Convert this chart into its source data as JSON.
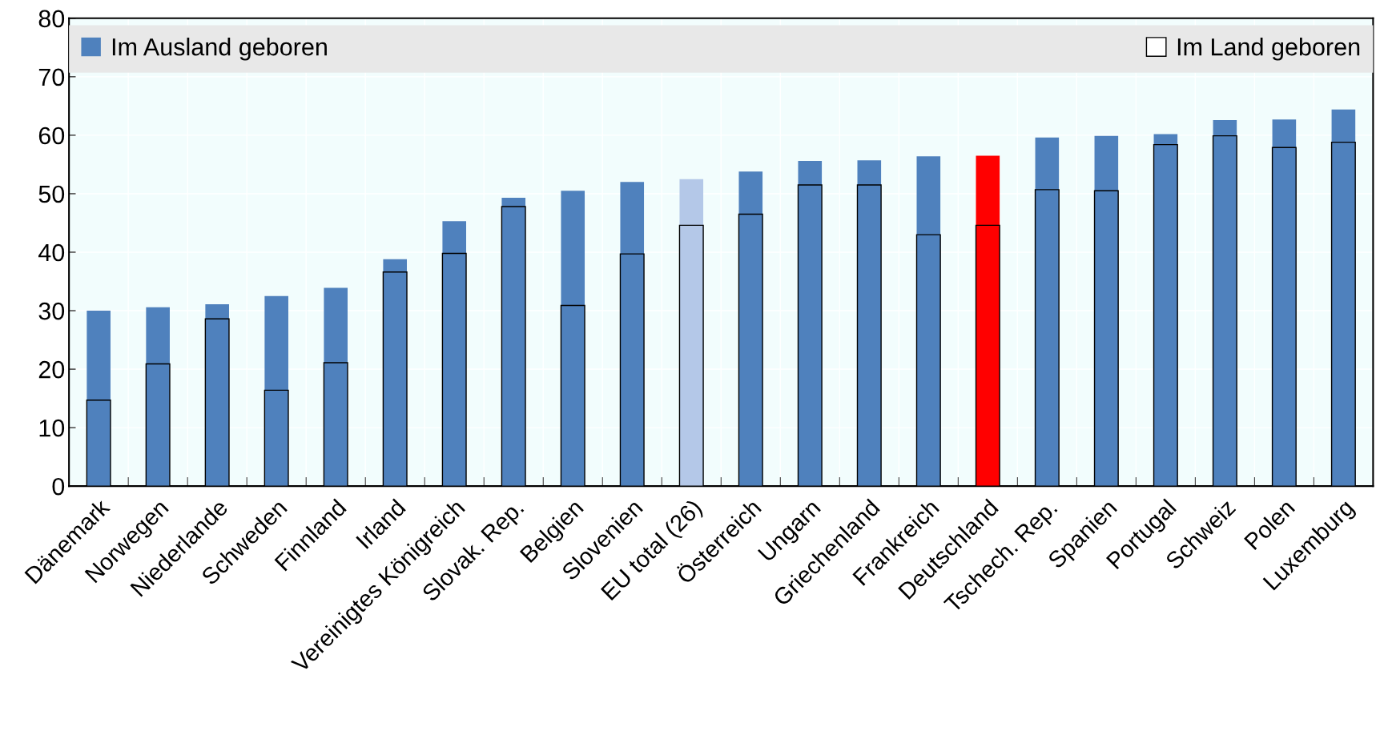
{
  "chart_data": {
    "type": "bar",
    "categories": [
      "Dänemark",
      "Norwegen",
      "Niederlande",
      "Schweden",
      "Finnland",
      "Irland",
      "Vereinigtes Königreich",
      "Slovak. Rep.",
      "Belgien",
      "Slovenien",
      "EU total (26)",
      "Österreich",
      "Ungarn",
      "Griechenland",
      "Frankreich",
      "Deutschland",
      "Tschech. Rep.",
      "Spanien",
      "Portugal",
      "Schweiz",
      "Polen",
      "Luxemburg"
    ],
    "series": [
      {
        "name": "Im Ausland geboren",
        "color": "#4f81bd",
        "colors": [
          "#4f81bd",
          "#4f81bd",
          "#4f81bd",
          "#4f81bd",
          "#4f81bd",
          "#4f81bd",
          "#4f81bd",
          "#4f81bd",
          "#4f81bd",
          "#4f81bd",
          "#b4c8e8",
          "#4f81bd",
          "#4f81bd",
          "#4f81bd",
          "#4f81bd",
          "#ff0000",
          "#4f81bd",
          "#4f81bd",
          "#4f81bd",
          "#4f81bd",
          "#4f81bd",
          "#4f81bd"
        ],
        "values": [
          30.0,
          30.6,
          31.1,
          32.5,
          33.9,
          38.8,
          45.3,
          49.3,
          50.5,
          52.0,
          52.5,
          53.8,
          55.6,
          55.7,
          56.4,
          56.5,
          59.6,
          59.9,
          60.2,
          62.6,
          62.7,
          64.4
        ]
      },
      {
        "name": "Im Land geboren",
        "color": "#000000",
        "values": [
          14.7,
          20.9,
          28.6,
          16.4,
          21.1,
          36.6,
          39.8,
          47.8,
          30.9,
          39.7,
          44.6,
          46.5,
          51.5,
          51.5,
          43.0,
          44.6,
          50.7,
          50.5,
          58.4,
          59.9,
          57.9,
          58.8
        ]
      }
    ],
    "ylim": [
      0,
      80
    ],
    "yticks": [
      0,
      10,
      20,
      30,
      40,
      50,
      60,
      70,
      80
    ],
    "grid": true,
    "legend": "top"
  }
}
